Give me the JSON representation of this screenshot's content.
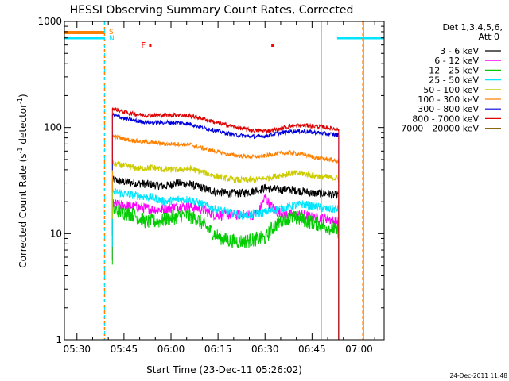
{
  "chart_data": {
    "type": "line",
    "title": "HESSI Observing Summary Count Rates, Corrected",
    "xlabel": "Start Time (23-Dec-11 05:26:02)",
    "ylabel_main": "Corrected Count Rate (s",
    "ylabel_sup1": "-1",
    "ylabel_mid": " detector",
    "ylabel_sup2": "-1",
    "ylabel_end": ")",
    "timestamp": "24-Dec-2011 11:48",
    "xlim_min": [
      0,
      102
    ],
    "ylim": [
      1,
      1000
    ],
    "yscale": "log",
    "x_ticks": [
      {
        "min": 4,
        "label": "05:30"
      },
      {
        "min": 19,
        "label": "05:45"
      },
      {
        "min": 34,
        "label": "06:00"
      },
      {
        "min": 49,
        "label": "06:15"
      },
      {
        "min": 64,
        "label": "06:30"
      },
      {
        "min": 79,
        "label": "06:45"
      },
      {
        "min": 94,
        "label": "07:00"
      }
    ],
    "y_ticks": [
      {
        "value": 1,
        "label": "1"
      },
      {
        "value": 10,
        "label": "10"
      },
      {
        "value": 100,
        "label": "100"
      },
      {
        "value": 1000,
        "label": "1000"
      }
    ],
    "legend_title_1": "Det 1,3,4,5,6,",
    "legend_title_2": "Att 0",
    "legend_position": "right",
    "flag_labels": [
      {
        "text": "S",
        "color": "#ff8000"
      },
      {
        "text": "N",
        "color": "#00e5ff"
      },
      {
        "text": "F",
        "color": "#ff0000"
      }
    ],
    "data_window_min": [
      15.3,
      94.3
    ],
    "series": [
      {
        "name": "3 - 6 keV",
        "color": "#000000",
        "noise": 0.04,
        "points": [
          [
            15.3,
            32
          ],
          [
            22,
            30
          ],
          [
            28,
            29
          ],
          [
            32,
            28
          ],
          [
            36,
            30
          ],
          [
            40,
            29
          ],
          [
            44,
            27
          ],
          [
            48,
            25
          ],
          [
            52,
            24
          ],
          [
            56,
            24
          ],
          [
            60,
            25
          ],
          [
            64,
            27
          ],
          [
            68,
            26
          ],
          [
            72,
            26
          ],
          [
            76,
            25
          ],
          [
            80,
            24
          ],
          [
            84,
            24
          ],
          [
            86,
            23
          ],
          [
            87.5,
            23
          ]
        ]
      },
      {
        "name": "6 - 12 keV",
        "color": "#ff00ff",
        "noise": 0.05,
        "points": [
          [
            15.3,
            19
          ],
          [
            22,
            18
          ],
          [
            28,
            17
          ],
          [
            32,
            17
          ],
          [
            36,
            18
          ],
          [
            40,
            18
          ],
          [
            44,
            17
          ],
          [
            48,
            15
          ],
          [
            52,
            15
          ],
          [
            56,
            15
          ],
          [
            60,
            15
          ],
          [
            62,
            16
          ],
          [
            64,
            22
          ],
          [
            66,
            18
          ],
          [
            68,
            16
          ],
          [
            72,
            15
          ],
          [
            76,
            15
          ],
          [
            80,
            14
          ],
          [
            84,
            14
          ],
          [
            86,
            13
          ],
          [
            87.5,
            13
          ]
        ]
      },
      {
        "name": "12 - 25 keV",
        "color": "#00cc00",
        "noise": 0.07,
        "points": [
          [
            15.3,
            17
          ],
          [
            22,
            15
          ],
          [
            26,
            13
          ],
          [
            30,
            13
          ],
          [
            34,
            14
          ],
          [
            38,
            15
          ],
          [
            42,
            14
          ],
          [
            46,
            11
          ],
          [
            50,
            9
          ],
          [
            54,
            8.5
          ],
          [
            58,
            8.5
          ],
          [
            62,
            9
          ],
          [
            64,
            9
          ],
          [
            66,
            11
          ],
          [
            70,
            14
          ],
          [
            74,
            14
          ],
          [
            78,
            13
          ],
          [
            82,
            12
          ],
          [
            86,
            11
          ],
          [
            87.5,
            10.5
          ]
        ]
      },
      {
        "name": "25 - 50 keV",
        "color": "#00e5ff",
        "noise": 0.04,
        "points": [
          [
            15.3,
            25
          ],
          [
            22,
            23
          ],
          [
            28,
            22
          ],
          [
            32,
            20
          ],
          [
            36,
            21
          ],
          [
            40,
            21
          ],
          [
            44,
            19
          ],
          [
            48,
            17
          ],
          [
            52,
            16
          ],
          [
            56,
            15
          ],
          [
            60,
            15
          ],
          [
            64,
            16
          ],
          [
            68,
            17
          ],
          [
            72,
            18
          ],
          [
            76,
            19
          ],
          [
            80,
            18
          ],
          [
            84,
            17
          ],
          [
            87.5,
            17
          ]
        ]
      },
      {
        "name": "50 - 100 keV",
        "color": "#cccc00",
        "noise": 0.03,
        "points": [
          [
            15.3,
            46
          ],
          [
            20,
            43
          ],
          [
            24,
            41
          ],
          [
            28,
            42
          ],
          [
            32,
            40
          ],
          [
            36,
            40
          ],
          [
            40,
            41
          ],
          [
            44,
            38
          ],
          [
            48,
            35
          ],
          [
            52,
            33
          ],
          [
            56,
            32
          ],
          [
            60,
            32
          ],
          [
            64,
            33
          ],
          [
            68,
            35
          ],
          [
            72,
            37
          ],
          [
            76,
            37
          ],
          [
            80,
            35
          ],
          [
            84,
            34
          ],
          [
            87.5,
            33
          ]
        ]
      },
      {
        "name": "100 - 300 keV",
        "color": "#ff8000",
        "noise": 0.02,
        "points": [
          [
            15.3,
            83
          ],
          [
            20,
            77
          ],
          [
            24,
            74
          ],
          [
            28,
            72
          ],
          [
            32,
            70
          ],
          [
            36,
            70
          ],
          [
            40,
            69
          ],
          [
            44,
            64
          ],
          [
            48,
            60
          ],
          [
            52,
            56
          ],
          [
            56,
            54
          ],
          [
            60,
            53
          ],
          [
            64,
            54
          ],
          [
            68,
            57
          ],
          [
            72,
            58
          ],
          [
            76,
            56
          ],
          [
            80,
            52
          ],
          [
            84,
            50
          ],
          [
            87.5,
            48
          ]
        ]
      },
      {
        "name": "300 - 800 keV",
        "color": "#0000dd",
        "noise": 0.02,
        "points": [
          [
            15.3,
            132
          ],
          [
            20,
            120
          ],
          [
            24,
            114
          ],
          [
            28,
            111
          ],
          [
            32,
            112
          ],
          [
            36,
            111
          ],
          [
            40,
            108
          ],
          [
            44,
            100
          ],
          [
            48,
            94
          ],
          [
            52,
            88
          ],
          [
            56,
            84
          ],
          [
            60,
            82
          ],
          [
            64,
            83
          ],
          [
            68,
            88
          ],
          [
            72,
            92
          ],
          [
            76,
            92
          ],
          [
            80,
            90
          ],
          [
            84,
            87
          ],
          [
            87.5,
            85
          ]
        ]
      },
      {
        "name": "800 - 7000 keV",
        "color": "#dd0000",
        "noise": 0.02,
        "points": [
          [
            15.3,
            152
          ],
          [
            20,
            138
          ],
          [
            24,
            132
          ],
          [
            28,
            130
          ],
          [
            32,
            131
          ],
          [
            36,
            132
          ],
          [
            40,
            129
          ],
          [
            44,
            122
          ],
          [
            48,
            112
          ],
          [
            52,
            105
          ],
          [
            56,
            99
          ],
          [
            60,
            94
          ],
          [
            64,
            93
          ],
          [
            68,
            96
          ],
          [
            72,
            103
          ],
          [
            76,
            105
          ],
          [
            80,
            103
          ],
          [
            84,
            99
          ],
          [
            87.5,
            96
          ]
        ]
      },
      {
        "name": "7000 - 20000 keV",
        "color": "#8b6914",
        "noise": 0,
        "points": []
      }
    ]
  }
}
